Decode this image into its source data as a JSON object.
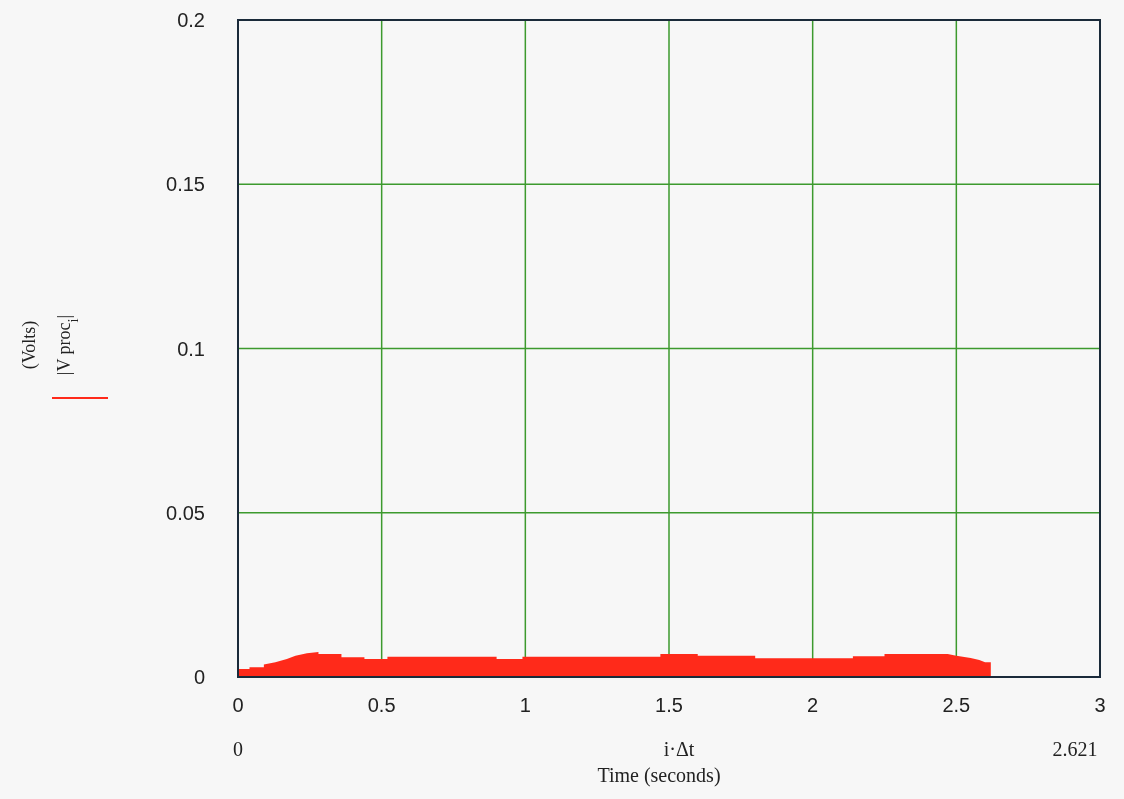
{
  "chart_data": {
    "type": "area",
    "xlabel": "i·Δt",
    "annotations": [
      "0",
      "2.621",
      "Time (seconds)",
      "(Volts)"
    ],
    "xlim": [
      0,
      3
    ],
    "xticks": [
      0,
      0.5,
      1,
      1.5,
      2,
      2.5,
      3
    ],
    "ylim": [
      0,
      0.2
    ],
    "yticks": [
      0,
      0.05,
      0.1,
      0.15,
      0.2
    ],
    "grid": true,
    "legend": "left",
    "series": [
      {
        "name": "|V proc$_{i}$|",
        "color": "#ff2a1a",
        "x": [
          0,
          0.04,
          0.04,
          0.09,
          0.09,
          0.13,
          0.17,
          0.2,
          0.24,
          0.28,
          0.28,
          0.36,
          0.36,
          0.44,
          0.44,
          0.52,
          0.52,
          0.9,
          0.9,
          0.99,
          0.99,
          1.47,
          1.47,
          1.6,
          1.6,
          1.8,
          1.8,
          2.14,
          2.14,
          2.25,
          2.25,
          2.47,
          2.5,
          2.55,
          2.58,
          2.6,
          2.62,
          2.62
        ],
        "values": [
          0.0024,
          0.0024,
          0.003,
          0.003,
          0.0038,
          0.0045,
          0.0055,
          0.0065,
          0.0072,
          0.0076,
          0.007,
          0.007,
          0.006,
          0.006,
          0.0055,
          0.0055,
          0.0062,
          0.0062,
          0.0055,
          0.0055,
          0.0062,
          0.0062,
          0.007,
          0.007,
          0.0065,
          0.0065,
          0.0057,
          0.0057,
          0.0063,
          0.0063,
          0.007,
          0.007,
          0.0065,
          0.0058,
          0.0052,
          0.0045,
          0.0045,
          0
        ]
      }
    ]
  }
}
